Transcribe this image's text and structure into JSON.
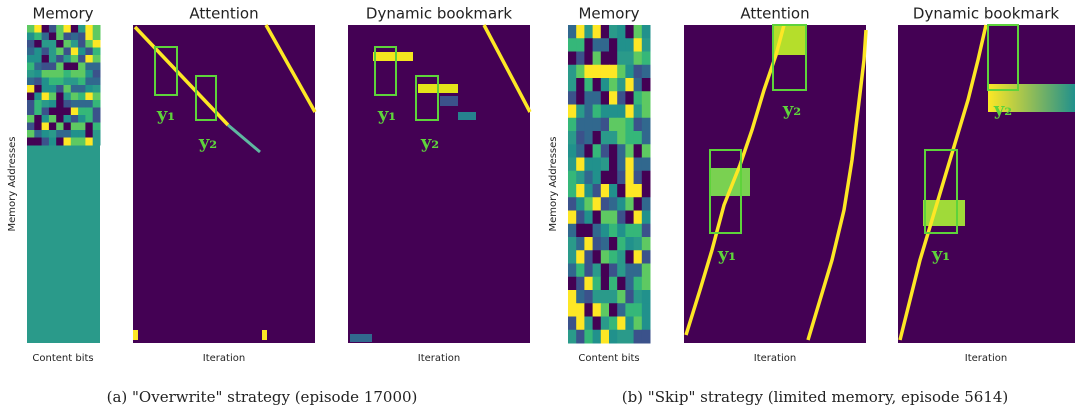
{
  "panels": [
    {
      "caption": "(a) \"Overwrite\" strategy (episode 17000)",
      "ylabel": "Memory Addresses",
      "plots": [
        {
          "title": "Memory",
          "xlabel": "Content bits"
        },
        {
          "title": "Attention",
          "xlabel": "Iteration",
          "markers": [
            "y₁",
            "y₂"
          ]
        },
        {
          "title": "Dynamic bookmark",
          "xlabel": "Iteration",
          "markers": [
            "y₁",
            "y₂"
          ]
        }
      ]
    },
    {
      "caption": "(b) \"Skip\" strategy (limited memory, episode 5614)",
      "ylabel": "Memory Addresses",
      "plots": [
        {
          "title": "Memory",
          "xlabel": "Content bits"
        },
        {
          "title": "Attention",
          "xlabel": "Iteration",
          "markers": [
            "y₁",
            "y₂"
          ]
        },
        {
          "title": "Dynamic bookmark",
          "xlabel": "Iteration",
          "markers": [
            "y₁",
            "y₂"
          ]
        }
      ]
    }
  ]
}
